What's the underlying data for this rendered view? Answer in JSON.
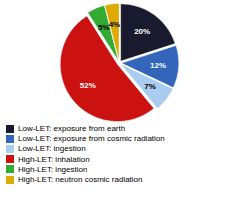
{
  "chart_data": {
    "type": "pie",
    "categories": [
      "Low-LET: exposure from earth",
      "Low-LET: exposure from cosmic radiation",
      "Low-LET: ingestion",
      "High-LET: inhalation",
      "High-LET: ingestion",
      "High-LET: neutron cosmic radiation"
    ],
    "values": [
      20,
      12,
      7,
      52,
      5,
      4
    ],
    "value_labels": [
      "20%",
      "12%",
      "7%",
      "52%",
      "5%",
      "4%"
    ],
    "colors": [
      "#1a1a2e",
      "#3366bb",
      "#aaccee",
      "#cc1111",
      "#33aa33",
      "#ddaa00"
    ],
    "data_labels": true,
    "legend": "lower left"
  }
}
